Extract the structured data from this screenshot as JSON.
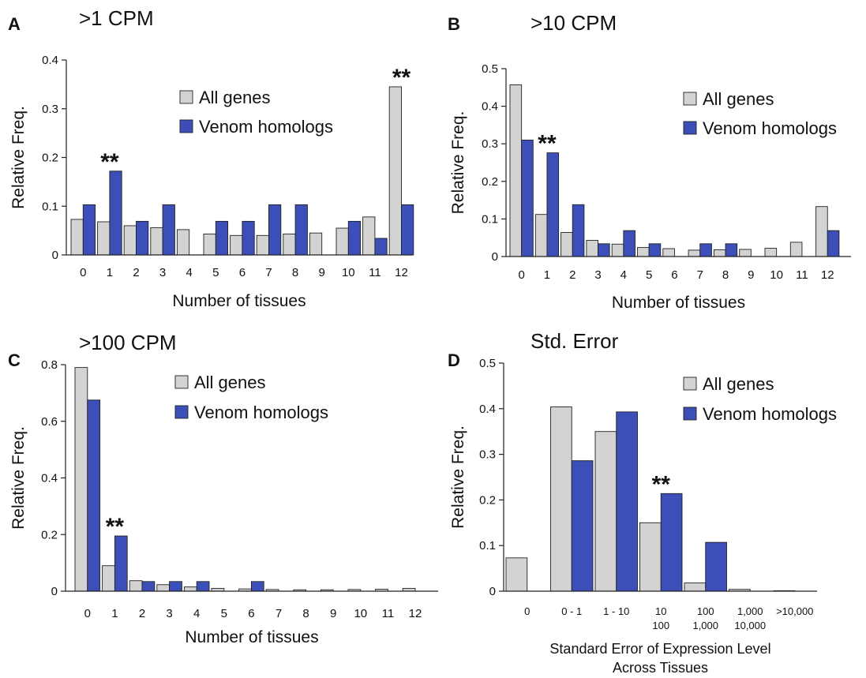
{
  "colors": {
    "all_genes": "#d3d3d3",
    "venom_homologs": "#3c4fb8"
  },
  "chart_data": [
    {
      "panel": "A",
      "type": "bar",
      "title": ">1 CPM",
      "xlabel": "Number of tissues",
      "ylabel": "Relative Freq.",
      "ylim": [
        0,
        0.4
      ],
      "yticks": [
        "0",
        "0.1",
        "0.2",
        "0.3",
        "0.4"
      ],
      "categories": [
        "0",
        "1",
        "2",
        "3",
        "4",
        "5",
        "6",
        "7",
        "8",
        "9",
        "10",
        "11",
        "12"
      ],
      "series": [
        {
          "name": "All genes",
          "values": [
            0.073,
            0.068,
            0.06,
            0.056,
            0.052,
            0.043,
            0.04,
            0.04,
            0.043,
            0.045,
            0.055,
            0.078,
            0.345
          ]
        },
        {
          "name": "Venom homologs",
          "values": [
            0.103,
            0.172,
            0.069,
            0.103,
            0,
            0.069,
            0.069,
            0.103,
            0.103,
            0,
            0.069,
            0.034,
            0.103
          ]
        }
      ],
      "annotations": [
        {
          "text": "**",
          "category": "1"
        },
        {
          "text": "**",
          "category": "12"
        }
      ],
      "legend": "top-right"
    },
    {
      "panel": "B",
      "type": "bar",
      "title": ">10 CPM",
      "xlabel": "Number of tissues",
      "ylabel": "Relative Freq.",
      "ylim": [
        0,
        0.5
      ],
      "yticks": [
        "0",
        "0.1",
        "0.2",
        "0.3",
        "0.4",
        "0.5"
      ],
      "categories": [
        "0",
        "1",
        "2",
        "3",
        "4",
        "5",
        "6",
        "7",
        "8",
        "9",
        "10",
        "11",
        "12"
      ],
      "series": [
        {
          "name": "All genes",
          "values": [
            0.457,
            0.112,
            0.064,
            0.043,
            0.033,
            0.024,
            0.021,
            0.017,
            0.018,
            0.019,
            0.022,
            0.038,
            0.133
          ]
        },
        {
          "name": "Venom homologs",
          "values": [
            0.31,
            0.276,
            0.138,
            0.034,
            0.069,
            0.034,
            0,
            0.034,
            0.034,
            0,
            0,
            0,
            0.069
          ]
        }
      ],
      "annotations": [
        {
          "text": "**",
          "category": "1"
        }
      ],
      "legend": "top-right"
    },
    {
      "panel": "C",
      "type": "bar",
      "title": ">100 CPM",
      "xlabel": "Number of tissues",
      "ylabel": "Relative Freq.",
      "ylim": [
        0,
        0.8
      ],
      "yticks": [
        "0",
        "0.2",
        "0.4",
        "0.6",
        "0.8"
      ],
      "categories": [
        "0",
        "1",
        "2",
        "3",
        "4",
        "5",
        "6",
        "7",
        "8",
        "9",
        "10",
        "11",
        "12"
      ],
      "series": [
        {
          "name": "All genes",
          "values": [
            0.79,
            0.09,
            0.037,
            0.023,
            0.015,
            0.01,
            0.008,
            0.006,
            0.005,
            0.005,
            0.006,
            0.007,
            0.01
          ]
        },
        {
          "name": "Venom homologs",
          "values": [
            0.675,
            0.195,
            0.034,
            0.034,
            0.034,
            0,
            0.034,
            0,
            0,
            0,
            0,
            0,
            0
          ]
        }
      ],
      "annotations": [
        {
          "text": "**",
          "category": "1"
        }
      ],
      "legend": "top-right"
    },
    {
      "panel": "D",
      "type": "bar",
      "title": "Std. Error",
      "xlabel": "Standard Error of Expression Level",
      "xlabel2": "Across Tissues",
      "ylabel": "Relative Freq.",
      "ylim": [
        0,
        0.5
      ],
      "yticks": [
        "0",
        "0.1",
        "0.2",
        "0.3",
        "0.4",
        "0.5"
      ],
      "categories": [
        "0",
        "0 - 1",
        "1 - 10",
        "10",
        "100",
        "1,000",
        ">10,000"
      ],
      "category_sublabels": [
        "",
        "",
        "",
        "100",
        "1,000",
        "10,000",
        ""
      ],
      "series": [
        {
          "name": "All genes",
          "values": [
            0.073,
            0.404,
            0.35,
            0.15,
            0.018,
            0.004,
            0.001
          ]
        },
        {
          "name": "Venom homologs",
          "values": [
            0,
            0.286,
            0.393,
            0.214,
            0.107,
            0,
            0
          ]
        }
      ],
      "annotations": [
        {
          "text": "**",
          "category": "10"
        }
      ],
      "legend": "top-right"
    }
  ]
}
